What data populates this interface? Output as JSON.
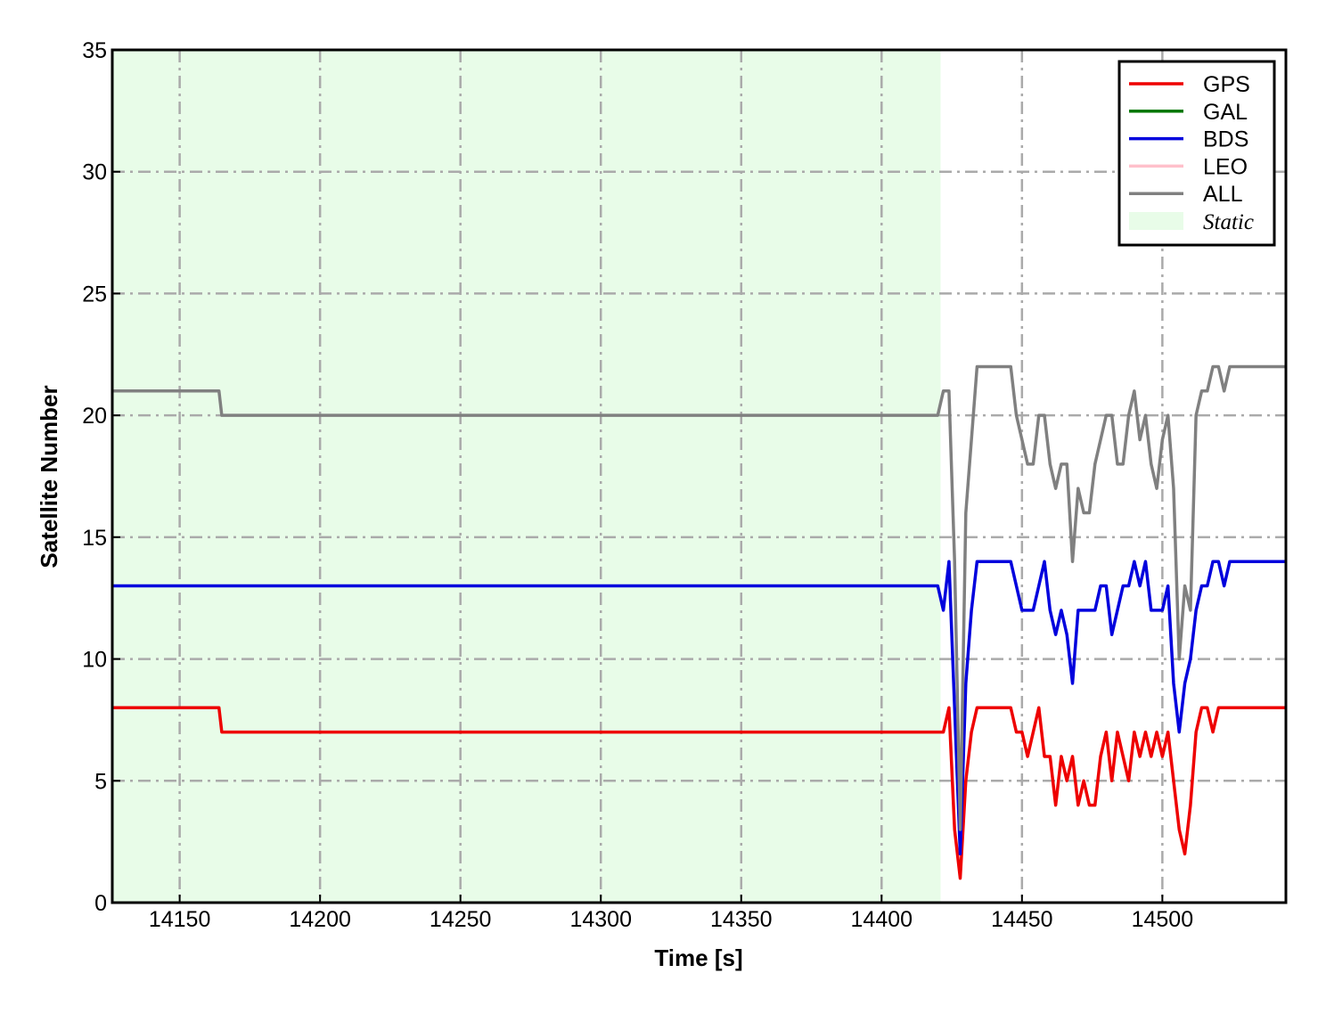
{
  "chart_data": {
    "type": "line",
    "xlabel": "Time [s]",
    "ylabel": "Satellite Number",
    "xlim": [
      14126,
      14544
    ],
    "ylim": [
      0,
      35
    ],
    "xticks": [
      14150,
      14200,
      14250,
      14300,
      14350,
      14400,
      14450,
      14500
    ],
    "yticks": [
      0,
      5,
      10,
      15,
      20,
      25,
      30,
      35
    ],
    "grid": true,
    "legend": "upper right",
    "shade": {
      "label": "Static",
      "color": "#e8fce8",
      "xrange": [
        14126,
        14421
      ]
    },
    "x": [
      14126,
      14164,
      14165,
      14420,
      14422,
      14424,
      14426,
      14428,
      14430,
      14432,
      14434,
      14436,
      14438,
      14440,
      14442,
      14444,
      14446,
      14448,
      14450,
      14452,
      14454,
      14456,
      14458,
      14460,
      14462,
      14464,
      14466,
      14468,
      14470,
      14472,
      14474,
      14476,
      14478,
      14480,
      14482,
      14484,
      14486,
      14488,
      14490,
      14492,
      14494,
      14496,
      14498,
      14500,
      14502,
      14504,
      14506,
      14508,
      14510,
      14512,
      14514,
      14516,
      14518,
      14520,
      14522,
      14524,
      14544
    ],
    "series": [
      {
        "name": "GPS",
        "color": "#ee0000",
        "values": [
          8,
          8,
          7,
          7,
          7,
          8,
          3,
          1,
          5,
          7,
          8,
          8,
          8,
          8,
          8,
          8,
          8,
          7,
          7,
          6,
          7,
          8,
          6,
          6,
          4,
          6,
          5,
          6,
          4,
          5,
          4,
          4,
          6,
          7,
          5,
          7,
          6,
          5,
          7,
          6,
          7,
          6,
          7,
          6,
          7,
          5,
          3,
          2,
          4,
          7,
          8,
          8,
          7,
          8,
          8,
          8,
          8
        ]
      },
      {
        "name": "GAL",
        "color": "#007700",
        "values": [
          null,
          null,
          null,
          null,
          null,
          null,
          null,
          null,
          null,
          null,
          null,
          null,
          null,
          null,
          null,
          null,
          null,
          null,
          null,
          null,
          null,
          null,
          null,
          null,
          null,
          null,
          null,
          null,
          null,
          null,
          null,
          null,
          null,
          null,
          null,
          null,
          null,
          null,
          null,
          null,
          null,
          null,
          null,
          null,
          null,
          null,
          null,
          null,
          null,
          null,
          null,
          null,
          null,
          null,
          null,
          null,
          null
        ]
      },
      {
        "name": "BDS",
        "color": "#0000dd",
        "values": [
          13,
          13,
          13,
          13,
          12,
          14,
          8,
          2,
          9,
          12,
          14,
          14,
          14,
          14,
          14,
          14,
          14,
          13,
          12,
          12,
          12,
          13,
          14,
          12,
          11,
          12,
          11,
          9,
          12,
          12,
          12,
          12,
          13,
          13,
          11,
          12,
          13,
          13,
          14,
          13,
          14,
          12,
          12,
          12,
          13,
          9,
          7,
          9,
          10,
          12,
          13,
          13,
          14,
          14,
          13,
          14,
          14
        ]
      },
      {
        "name": "LEO",
        "color": "#ffc0cb",
        "values": [
          null,
          null,
          null,
          null,
          null,
          null,
          null,
          null,
          null,
          null,
          null,
          null,
          null,
          null,
          null,
          null,
          null,
          null,
          null,
          null,
          null,
          null,
          null,
          null,
          null,
          null,
          null,
          null,
          null,
          null,
          null,
          null,
          null,
          null,
          null,
          null,
          null,
          null,
          null,
          null,
          null,
          null,
          null,
          null,
          null,
          null,
          null,
          null,
          null,
          null,
          null,
          null,
          null,
          null,
          null,
          null,
          null
        ]
      },
      {
        "name": "ALL",
        "color": "#808080",
        "values": [
          21,
          21,
          20,
          20,
          21,
          21,
          14,
          3,
          16,
          19,
          22,
          22,
          22,
          22,
          22,
          22,
          22,
          20,
          19,
          18,
          18,
          20,
          20,
          18,
          17,
          18,
          18,
          14,
          17,
          16,
          16,
          18,
          19,
          20,
          20,
          18,
          18,
          20,
          21,
          19,
          20,
          18,
          17,
          19,
          20,
          17,
          10,
          13,
          12,
          20,
          21,
          21,
          22,
          22,
          21,
          22,
          22
        ]
      }
    ]
  }
}
